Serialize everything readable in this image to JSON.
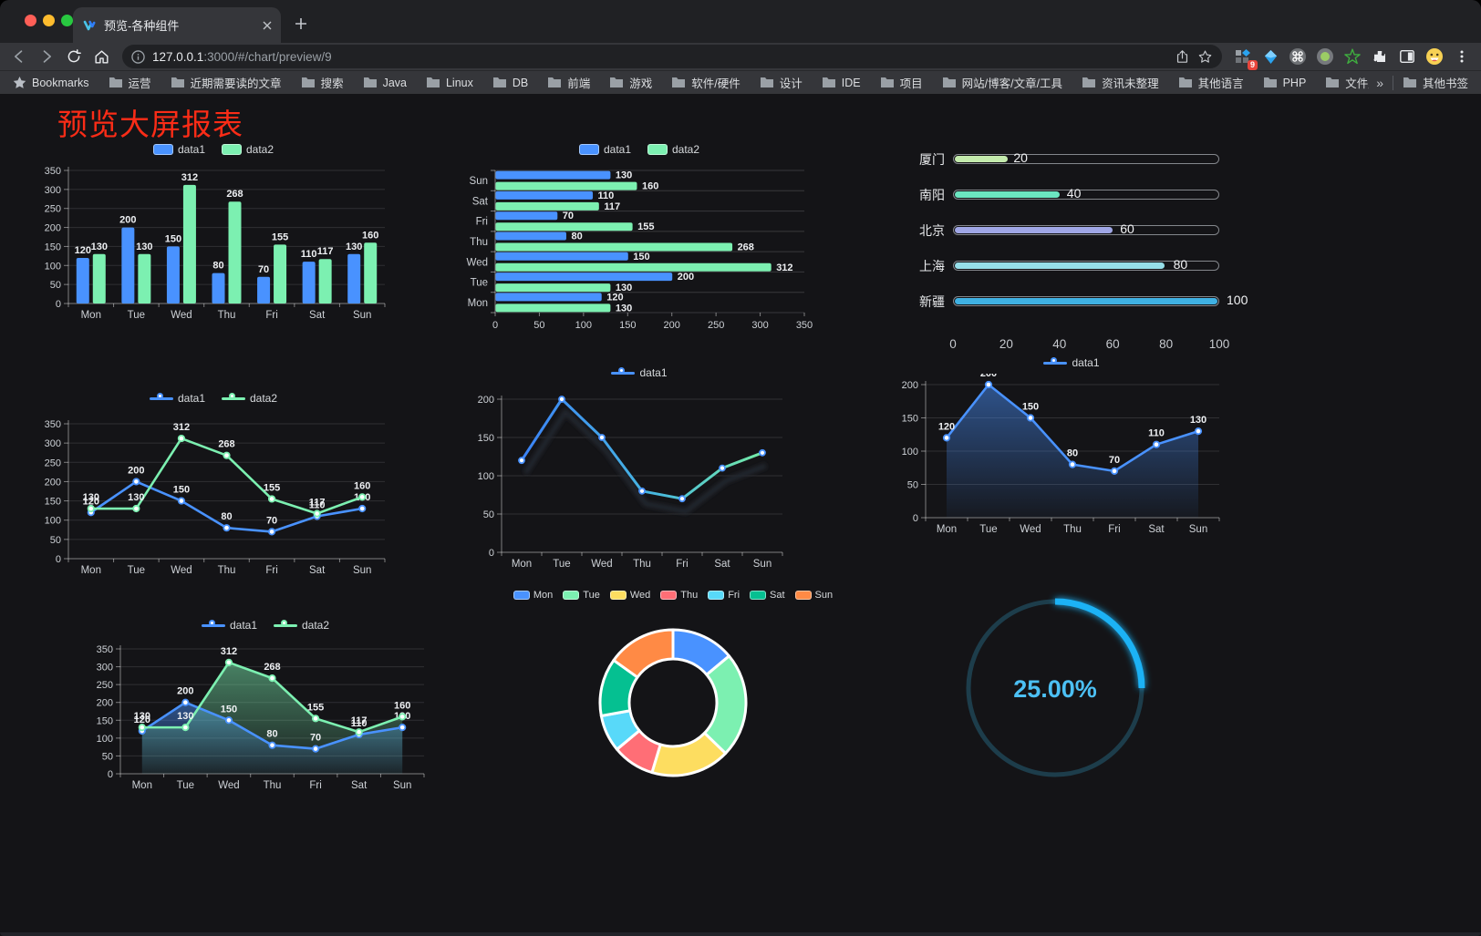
{
  "browser": {
    "tab_title": "预览-各种组件",
    "url_host": "127.0.0.1",
    "url_rest": ":3000/#/chart/preview/9",
    "extension_badge": "9",
    "bookmarks_label": "Bookmarks",
    "bookmark_folders": [
      "运营",
      "近期需要读的文章",
      "搜索",
      "Java",
      "Linux",
      "DB",
      "前端",
      "游戏",
      "软件/硬件",
      "设计",
      "IDE",
      "项目",
      "网站/博客/文章/工具",
      "资讯未整理",
      "其他语言",
      "PHP",
      "文件服务器"
    ],
    "overflow_chevron": "»",
    "other_bookmarks": "其他书签"
  },
  "page": {
    "title": "预览大屏报表",
    "title_color": "#fa2c17"
  },
  "chart_data": [
    {
      "name": "bar-vertical",
      "type": "bar",
      "categories": [
        "Mon",
        "Tue",
        "Wed",
        "Thu",
        "Fri",
        "Sat",
        "Sun"
      ],
      "series": [
        {
          "name": "data1",
          "color": "#4992ff",
          "values": [
            120,
            200,
            150,
            80,
            70,
            110,
            130
          ]
        },
        {
          "name": "data2",
          "color": "#7cf0b1",
          "values": [
            130,
            130,
            312,
            268,
            155,
            117,
            160
          ]
        }
      ],
      "ylim": [
        0,
        350
      ],
      "ytick": 50,
      "grid": true,
      "legend_position": "top"
    },
    {
      "name": "bar-horizontal",
      "type": "bar",
      "orientation": "horizontal",
      "categories": [
        "Mon",
        "Tue",
        "Wed",
        "Thu",
        "Fri",
        "Sat",
        "Sun"
      ],
      "series": [
        {
          "name": "data1",
          "color": "#4992ff",
          "values": [
            120,
            200,
            150,
            80,
            70,
            110,
            130
          ]
        },
        {
          "name": "data2",
          "color": "#7cf0b1",
          "values": [
            130,
            130,
            312,
            268,
            155,
            117,
            160
          ]
        }
      ],
      "xlim": [
        0,
        350
      ],
      "xtick": 50,
      "legend_position": "top"
    },
    {
      "name": "progress-bars",
      "type": "bar",
      "subtype": "progress",
      "max": 100,
      "axis_ticks": [
        0,
        20,
        40,
        60,
        80,
        100
      ],
      "items": [
        {
          "label": "厦门",
          "value": 20,
          "color": "#c4ebad"
        },
        {
          "label": "南阳",
          "value": 40,
          "color": "#6be6c1"
        },
        {
          "label": "北京",
          "value": 60,
          "color": "#a0a7e6"
        },
        {
          "label": "上海",
          "value": 80,
          "color": "#96dee8"
        },
        {
          "label": "新疆",
          "value": 100,
          "color": "#3fb1e3"
        }
      ]
    },
    {
      "name": "line-two-series",
      "type": "line",
      "categories": [
        "Mon",
        "Tue",
        "Wed",
        "Thu",
        "Fri",
        "Sat",
        "Sun"
      ],
      "series": [
        {
          "name": "data1",
          "color": "#4992ff",
          "values": [
            120,
            200,
            150,
            80,
            70,
            110,
            130
          ]
        },
        {
          "name": "data2",
          "color": "#7cf0b1",
          "values": [
            130,
            130,
            312,
            268,
            155,
            117,
            160
          ]
        }
      ],
      "ylim": [
        0,
        350
      ],
      "ytick": 50,
      "labels": true,
      "legend_position": "top"
    },
    {
      "name": "line-gradient",
      "type": "line",
      "categories": [
        "Mon",
        "Tue",
        "Wed",
        "Thu",
        "Fri",
        "Sat",
        "Sun"
      ],
      "series": [
        {
          "name": "data1",
          "color_gradient": [
            "#3b82f6",
            "#47b8e0",
            "#74eba6"
          ],
          "marker_color": "#4992ff",
          "values": [
            120,
            200,
            150,
            80,
            70,
            110,
            130
          ]
        }
      ],
      "ylim": [
        0,
        200
      ],
      "ytick": 50,
      "labels": false,
      "shadow": true,
      "legend_position": "top"
    },
    {
      "name": "line-area-single",
      "type": "area",
      "categories": [
        "Mon",
        "Tue",
        "Wed",
        "Thu",
        "Fri",
        "Sat",
        "Sun"
      ],
      "series": [
        {
          "name": "data1",
          "color": "#4992ff",
          "values": [
            120,
            200,
            150,
            80,
            70,
            110,
            130
          ]
        }
      ],
      "ylim": [
        0,
        200
      ],
      "ytick": 50,
      "labels": true,
      "legend_position": "top"
    },
    {
      "name": "area-two-series",
      "type": "area",
      "categories": [
        "Mon",
        "Tue",
        "Wed",
        "Thu",
        "Fri",
        "Sat",
        "Sun"
      ],
      "series": [
        {
          "name": "data1",
          "color": "#4992ff",
          "values": [
            120,
            200,
            150,
            80,
            70,
            110,
            130
          ]
        },
        {
          "name": "data2",
          "color": "#7cf0b1",
          "values": [
            130,
            130,
            312,
            268,
            155,
            117,
            160
          ]
        }
      ],
      "ylim": [
        0,
        350
      ],
      "ytick": 50,
      "labels": true,
      "legend_position": "top"
    },
    {
      "name": "donut",
      "type": "pie",
      "inner_radius_ratio": 0.6,
      "categories": [
        "Mon",
        "Tue",
        "Wed",
        "Thu",
        "Fri",
        "Sat",
        "Sun"
      ],
      "values": [
        120,
        200,
        150,
        80,
        70,
        110,
        130
      ],
      "colors": [
        "#4992ff",
        "#7cf0b1",
        "#fddd60",
        "#ff6e76",
        "#58d9f9",
        "#05c091",
        "#ff8a45"
      ],
      "border_color": "#ffffff",
      "legend_position": "top"
    },
    {
      "name": "gauge",
      "type": "pie",
      "subtype": "ring-progress",
      "value": 25,
      "max": 100,
      "label": "25.00%",
      "arc_color": "#1db2f5",
      "track_color": "#1d3d4b",
      "text_color": "#4cc0f4"
    }
  ]
}
